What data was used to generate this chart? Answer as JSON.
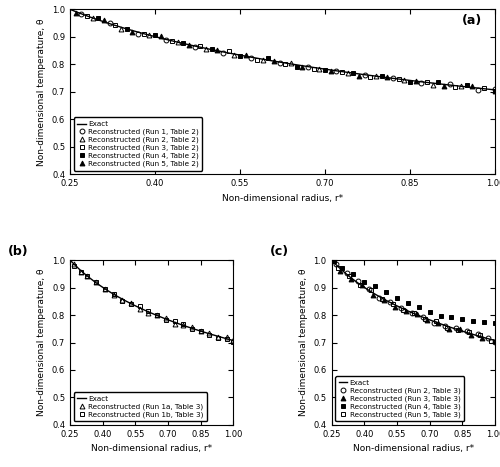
{
  "title_a": "(a)",
  "title_b": "(b)",
  "title_c": "(c)",
  "xlabel": "Non-dimensional radius, r*",
  "ylabel_a": "Non-dimensional temperature, θ",
  "ylabel_bc": "Non-dimensional temperature, θ",
  "xlim": [
    0.25,
    1.0
  ],
  "ylim_a": [
    0.4,
    1.0
  ],
  "ylim_bc": [
    0.4,
    1.0
  ],
  "xticks": [
    0.25,
    0.4,
    0.55,
    0.7,
    0.85,
    1.0
  ],
  "yticks_a": [
    0.4,
    0.5,
    0.6,
    0.7,
    0.8,
    0.9,
    1.0
  ],
  "yticks_bc": [
    0.4,
    0.5,
    0.6,
    0.7,
    0.8,
    0.9,
    1.0
  ],
  "legend_a": {
    "exact": "Exact",
    "run1": "Reconstructed (Run 1, Table 2)",
    "run2": "Reconstructed (Run 2, Table 2)",
    "run3": "Reconstructed (Run 3, Table 2)",
    "run4": "Reconstructed (Run 4, Table 2)",
    "run5": "Reconstructed (Run 5, Table 2)"
  },
  "legend_b": {
    "exact": "Exact",
    "run1a": "Reconstructed (Run 1a, Table 3)",
    "run1b": "Reconstructed (Run 1b, Table 3)"
  },
  "legend_c": {
    "exact": "Exact",
    "run2": "Reconstructed (Run 2, Table 3)",
    "run3": "Reconstructed (Run 3, Table 3)",
    "run4": "Reconstructed (Run 4, Table 3)",
    "run5": "Reconstructed (Run 5, Table 3)"
  },
  "r_inner": 0.25,
  "r_outer": 1.0,
  "theta_inner": 1.0,
  "theta_outer": 0.707
}
